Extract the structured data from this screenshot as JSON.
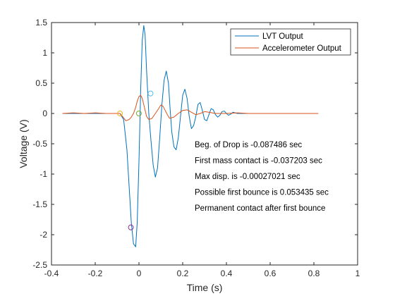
{
  "chart_data": {
    "type": "line",
    "title": "",
    "xlabel": "Time (s)",
    "ylabel": "Voltage (V)",
    "xlim": [
      -0.4,
      1.0
    ],
    "ylim": [
      -2.5,
      1.5
    ],
    "xticks": [
      -0.4,
      -0.2,
      0,
      0.2,
      0.4,
      0.6,
      0.8,
      1
    ],
    "xtick_labels": [
      "-0.4",
      "-0.2",
      "0",
      "0.2",
      "0.4",
      "0.6",
      "0.8",
      "1"
    ],
    "yticks": [
      -2.5,
      -2,
      -1.5,
      -1,
      -0.5,
      0,
      0.5,
      1,
      1.5
    ],
    "ytick_labels": [
      "-2.5",
      "-2",
      "-1.5",
      "-1",
      "-0.5",
      "0",
      "0.5",
      "1",
      "1.5"
    ],
    "grid": false,
    "legend_position": "top-right",
    "series": [
      {
        "name": "LVT Output",
        "color": "#0072BD",
        "x": [
          -0.35,
          -0.3,
          -0.25,
          -0.2,
          -0.15,
          -0.1,
          -0.087,
          -0.07,
          -0.055,
          -0.045,
          -0.035,
          -0.025,
          -0.015,
          -0.008,
          0.0,
          0.008,
          0.015,
          0.022,
          0.028,
          0.035,
          0.045,
          0.055,
          0.065,
          0.075,
          0.085,
          0.095,
          0.105,
          0.115,
          0.125,
          0.135,
          0.142,
          0.15,
          0.16,
          0.17,
          0.18,
          0.19,
          0.2,
          0.21,
          0.22,
          0.23,
          0.24,
          0.25,
          0.26,
          0.27,
          0.28,
          0.29,
          0.3,
          0.31,
          0.32,
          0.33,
          0.34,
          0.35,
          0.36,
          0.37,
          0.38,
          0.39,
          0.4,
          0.41,
          0.42,
          0.43,
          0.44,
          0.45,
          0.5,
          0.55,
          0.6,
          0.7,
          0.82
        ],
        "y": [
          0.0,
          0.0,
          0.0,
          0.0,
          0.0,
          0.0,
          0.0,
          -0.1,
          -0.6,
          -1.2,
          -1.8,
          -2.15,
          -2.2,
          -1.8,
          -0.8,
          0.4,
          1.2,
          1.45,
          1.3,
          0.7,
          0.0,
          -0.45,
          -0.85,
          -1.05,
          -0.9,
          -0.4,
          0.15,
          0.55,
          0.7,
          0.5,
          0.1,
          -0.3,
          -0.55,
          -0.6,
          -0.4,
          -0.05,
          0.3,
          0.4,
          0.25,
          -0.05,
          -0.25,
          -0.2,
          -0.05,
          0.15,
          0.18,
          0.05,
          -0.1,
          -0.12,
          -0.02,
          0.08,
          0.06,
          -0.02,
          -0.06,
          -0.03,
          0.03,
          0.04,
          0.0,
          -0.03,
          -0.01,
          0.02,
          0.01,
          0.0,
          0.0,
          0.0,
          0.0,
          0.0,
          0.0
        ]
      },
      {
        "name": "Accelerometer Output",
        "color": "#D95319",
        "x": [
          -0.35,
          -0.3,
          -0.25,
          -0.2,
          -0.15,
          -0.1,
          -0.087,
          -0.075,
          -0.06,
          -0.045,
          -0.035,
          -0.025,
          -0.015,
          -0.008,
          0.0,
          0.008,
          0.015,
          0.025,
          0.035,
          0.045,
          0.06,
          0.075,
          0.09,
          0.1,
          0.11,
          0.12,
          0.13,
          0.14,
          0.16,
          0.18,
          0.2,
          0.22,
          0.24,
          0.26,
          0.28,
          0.3,
          0.32,
          0.35,
          0.4,
          0.45,
          0.5,
          0.6,
          0.7,
          0.82
        ],
        "y": [
          0.0,
          0.01,
          0.0,
          0.01,
          0.0,
          0.0,
          0.0,
          -0.05,
          -0.12,
          -0.1,
          -0.06,
          0.0,
          0.1,
          0.2,
          0.28,
          0.3,
          0.25,
          0.1,
          -0.05,
          -0.1,
          -0.08,
          0.0,
          0.08,
          0.14,
          0.12,
          0.05,
          -0.02,
          -0.08,
          -0.06,
          0.0,
          0.05,
          0.06,
          0.02,
          -0.02,
          0.0,
          0.03,
          0.02,
          0.0,
          0.0,
          0.01,
          0.0,
          0.0,
          0.0,
          0.0
        ]
      }
    ],
    "markers": [
      {
        "x": -0.087,
        "y": 0.0,
        "color": "#EDB120"
      },
      {
        "x": -0.037,
        "y": -1.88,
        "color": "#7E2F8E"
      },
      {
        "x": -0.0003,
        "y": 0.0,
        "color": "#77AC30"
      },
      {
        "x": 0.053,
        "y": 0.33,
        "color": "#4DBEEE"
      }
    ],
    "annotations": [
      "Beg. of Drop is -0.087486 sec",
      "First mass contact is -0.037203 sec",
      "Max disp. is -0.00027021 sec",
      "Possible first bounce is 0.053435 sec",
      "Permanent contact after first bounce"
    ]
  }
}
